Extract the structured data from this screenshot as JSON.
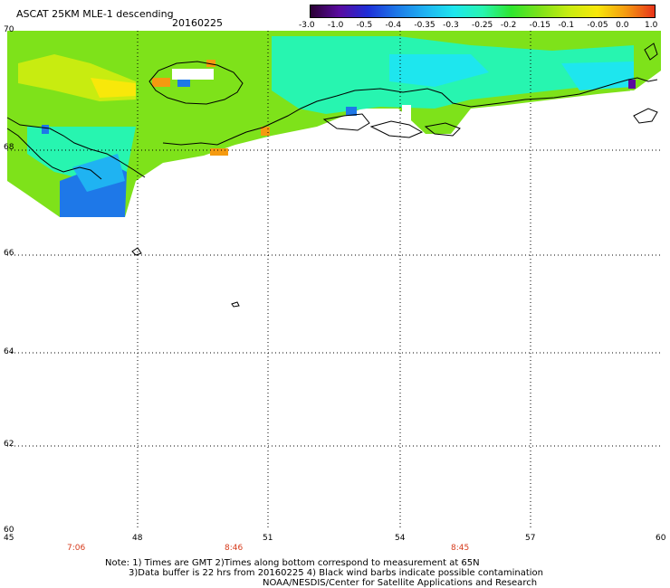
{
  "header": {
    "product": "ASCAT 25KM MLE-1 descending",
    "date": "20160225"
  },
  "colorbar": {
    "ticks": [
      "-3.0",
      "-1.0",
      "-0.5",
      "-0.4",
      "-0.35",
      "-0.3",
      "-0.25",
      "-0.2",
      "-0.15",
      "-0.1",
      "-0.05",
      "0.0",
      "1.0"
    ],
    "colors": [
      "#2a0033",
      "#5a0aa0",
      "#1e2fd8",
      "#1d78e8",
      "#1fb3f2",
      "#1ee6ee",
      "#27f5b0",
      "#2ee62e",
      "#7ee21a",
      "#c8ec10",
      "#f8e80a",
      "#f59a10",
      "#e8331a"
    ]
  },
  "map": {
    "lat_labels": [
      "70",
      "68",
      "66",
      "64",
      "62",
      "60"
    ],
    "lon_labels": [
      "45",
      "48",
      "51",
      "54",
      "57",
      "60"
    ],
    "time_labels": [
      "7:06",
      "8:46",
      "8:45"
    ],
    "grid": "dotted"
  },
  "notes": {
    "line1": "Note: 1) Times are GMT 2)Times along bottom correspond to measurement at 65N",
    "line2": "3)Data buffer is 22 hrs from 20160225 4) Black wind barbs indicate possible contamination",
    "line3": "NOAA/NESDIS/Center for Satellite Applications and Research"
  }
}
